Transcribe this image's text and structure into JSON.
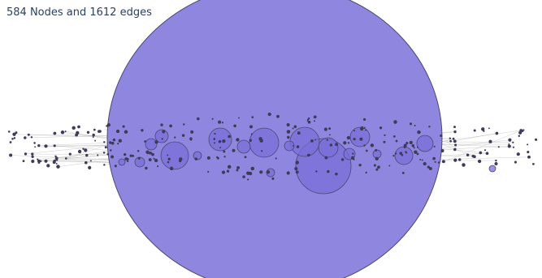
{
  "caption": "584 Nodes and 1612 edges",
  "colors": {
    "big_circle_fill": "#8f87df",
    "big_circle_stroke": "#4b4770",
    "cluster_fill": "#7a6ed8",
    "node_dark": "#3f3b57",
    "edge": "#8c8c8c"
  }
}
